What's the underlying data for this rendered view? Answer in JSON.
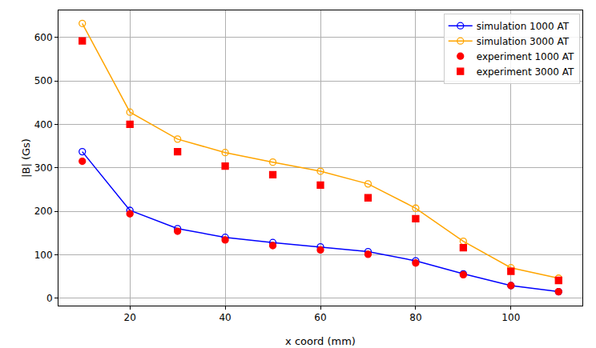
{
  "chart_data": {
    "type": "line",
    "x_label": "x coord (mm)",
    "y_label": "|B| (Gs)",
    "x": [
      10,
      20,
      30,
      40,
      50,
      60,
      70,
      80,
      90,
      100,
      110
    ],
    "series": [
      {
        "name": "simulation 1000 AT",
        "type": "line",
        "color": "#0000ff",
        "marker": "circle-open",
        "line_style": "solid",
        "values": [
          337,
          202,
          160,
          140,
          128,
          118,
          107,
          86,
          56,
          29,
          15
        ]
      },
      {
        "name": "simulation 3000 AT",
        "type": "line",
        "color": "#ffa500",
        "marker": "circle-open",
        "line_style": "solid",
        "values": [
          632,
          428,
          366,
          335,
          313,
          292,
          263,
          207,
          131,
          70,
          46
        ]
      },
      {
        "name": "experiment 1000 AT",
        "type": "scatter",
        "color": "#ff0000",
        "marker": "circle",
        "values": [
          315,
          194,
          154,
          134,
          121,
          111,
          101,
          81,
          54,
          29,
          15
        ]
      },
      {
        "name": "experiment 3000 AT",
        "type": "scatter",
        "color": "#ff0000",
        "marker": "square",
        "values": [
          592,
          400,
          337,
          304,
          284,
          260,
          231,
          183,
          116,
          62,
          41
        ]
      }
    ],
    "xlim": [
      5,
      115
    ],
    "xticks": [
      20,
      40,
      60,
      80,
      100
    ],
    "ylim": [
      -17,
      662
    ],
    "yticks": [
      0,
      100,
      200,
      300,
      400,
      500,
      600
    ],
    "grid": true,
    "legend": "upper right"
  }
}
